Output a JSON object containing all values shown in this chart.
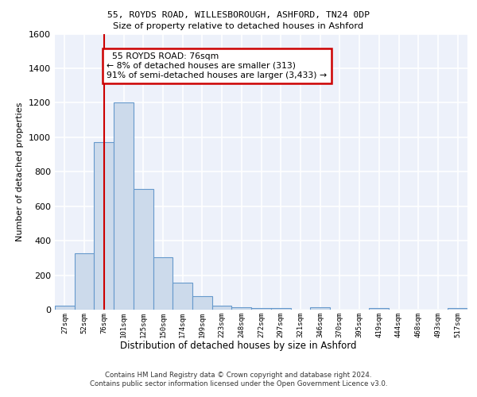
{
  "title1": "55, ROYDS ROAD, WILLESBOROUGH, ASHFORD, TN24 0DP",
  "title2": "Size of property relative to detached houses in Ashford",
  "xlabel": "Distribution of detached houses by size in Ashford",
  "ylabel": "Number of detached properties",
  "categories": [
    "27sqm",
    "52sqm",
    "76sqm",
    "101sqm",
    "125sqm",
    "150sqm",
    "174sqm",
    "199sqm",
    "223sqm",
    "248sqm",
    "272sqm",
    "297sqm",
    "321sqm",
    "346sqm",
    "370sqm",
    "395sqm",
    "419sqm",
    "444sqm",
    "468sqm",
    "493sqm",
    "517sqm"
  ],
  "values": [
    25,
    325,
    970,
    1200,
    700,
    305,
    155,
    80,
    25,
    15,
    10,
    10,
    0,
    15,
    0,
    0,
    10,
    0,
    0,
    0,
    10
  ],
  "bar_color": "#ccdaeb",
  "bar_edge_color": "#6699cc",
  "vline_x": 2,
  "vline_color": "#cc0000",
  "annotation_text": "  55 ROYDS ROAD: 76sqm  \n← 8% of detached houses are smaller (313)\n91% of semi-detached houses are larger (3,433) →",
  "annotation_box_color": "#ffffff",
  "annotation_box_edge_color": "#cc0000",
  "footnote": "Contains HM Land Registry data © Crown copyright and database right 2024.\nContains public sector information licensed under the Open Government Licence v3.0.",
  "ylim": [
    0,
    1600
  ],
  "background_color": "#edf1fa",
  "grid_color": "#ffffff"
}
